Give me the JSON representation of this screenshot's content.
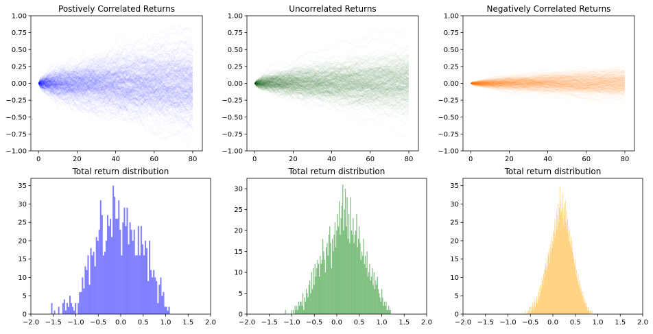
{
  "chart_data": [
    {
      "type": "line",
      "title": "Postively Correlated Returns",
      "description": "Fan of simulated cumulative return paths",
      "color": "#0000ff",
      "xlim": [
        -4,
        85
      ],
      "ylim": [
        -1.0,
        1.0
      ],
      "x_ticks": [
        0,
        20,
        40,
        60,
        80
      ],
      "y_ticks": [
        -1.0,
        -0.75,
        -0.5,
        -0.25,
        0.0,
        0.25,
        0.5,
        0.75,
        1.0
      ],
      "y_tick_labels": [
        "−1.00",
        "−0.75",
        "−0.50",
        "−0.25",
        "0.00",
        "0.25",
        "0.50",
        "0.75",
        "1.00"
      ],
      "steps": 81,
      "final_spread_sigma": 0.3,
      "final_envelope": [
        -0.55,
        0.6
      ]
    },
    {
      "type": "line",
      "title": "Uncorrelated Returns",
      "description": "Fan of simulated cumulative return paths",
      "color": "#006400",
      "xlim": [
        -4,
        85
      ],
      "ylim": [
        -1.0,
        1.0
      ],
      "x_ticks": [
        0,
        20,
        40,
        60,
        80
      ],
      "y_ticks": [
        -1.0,
        -0.75,
        -0.5,
        -0.25,
        0.0,
        0.25,
        0.5,
        0.75,
        1.0
      ],
      "y_tick_labels": [
        "−1.00",
        "−0.75",
        "−0.50",
        "−0.25",
        "0.00",
        "0.25",
        "0.50",
        "0.75",
        "1.00"
      ],
      "steps": 81,
      "final_spread_sigma": 0.22,
      "final_envelope": [
        -0.42,
        0.42
      ]
    },
    {
      "type": "line",
      "title": "Negatively Correlated Returns",
      "description": "Fan of simulated cumulative return paths",
      "color": "#ff8c00",
      "xlim": [
        -4,
        85
      ],
      "ylim": [
        -1.0,
        1.0
      ],
      "x_ticks": [
        0,
        20,
        40,
        60,
        80
      ],
      "y_ticks": [
        -1.0,
        -0.75,
        -0.5,
        -0.25,
        0.0,
        0.25,
        0.5,
        0.75,
        1.0
      ],
      "y_tick_labels": [
        "−1.00",
        "−0.75",
        "−0.50",
        "−0.25",
        "0.00",
        "0.25",
        "0.50",
        "0.75",
        "1.00"
      ],
      "steps": 81,
      "final_spread_sigma": 0.1,
      "final_envelope": [
        -0.15,
        0.27
      ]
    },
    {
      "type": "bar",
      "title": "Total return distribution",
      "color": "#0000ff",
      "opacity": 0.5,
      "xlim": [
        -2.0,
        2.0
      ],
      "ylim": [
        0,
        37
      ],
      "x_ticks": [
        -2.0,
        -1.5,
        -1.0,
        -0.5,
        0.0,
        0.5,
        1.0,
        1.5,
        2.0
      ],
      "x_tick_labels": [
        "−2.0",
        "−1.5",
        "−1.0",
        "−0.5",
        "0.0",
        "0.5",
        "1.0",
        "1.5",
        "2.0"
      ],
      "y_ticks": [
        0,
        5,
        10,
        15,
        20,
        25,
        30,
        35
      ],
      "bin_start": -1.55,
      "bin_width": 0.0311,
      "counts": [
        3,
        0,
        1,
        0,
        0,
        2,
        0,
        0,
        3,
        4,
        1,
        3,
        2,
        5,
        3,
        2,
        1,
        3,
        0,
        3,
        6,
        6,
        10,
        7,
        13,
        12,
        16,
        8,
        18,
        16,
        17,
        13,
        21,
        20,
        23,
        31,
        27,
        16,
        17,
        20,
        27,
        24,
        26,
        21,
        35,
        32,
        26,
        26,
        31,
        23,
        16,
        25,
        29,
        24,
        29,
        19,
        25,
        23,
        20,
        23,
        16,
        16,
        24,
        16,
        24,
        19,
        16,
        20,
        18,
        9,
        20,
        12,
        10,
        12,
        10,
        9,
        3,
        8,
        10,
        5,
        6,
        2,
        2,
        1,
        2
      ]
    },
    {
      "type": "bar",
      "title": "Total return distribution",
      "color": "#008000",
      "opacity": 0.5,
      "xlim": [
        -2.0,
        2.0
      ],
      "ylim": [
        0,
        32.5
      ],
      "x_ticks": [
        -2.0,
        -1.5,
        -1.0,
        -0.5,
        0.0,
        0.5,
        1.0,
        1.5,
        2.0
      ],
      "x_tick_labels": [
        "−2.0",
        "−1.5",
        "−1.0",
        "−0.5",
        "0.0",
        "0.5",
        "1.0",
        "1.5",
        "2.0"
      ],
      "y_ticks": [
        0,
        5,
        10,
        15,
        20,
        25,
        30
      ],
      "bin_start": -1.15,
      "bin_width": 0.0193,
      "counts": [
        1,
        0,
        0,
        0,
        0,
        0,
        0,
        1,
        0,
        1,
        0,
        2,
        1,
        2,
        1,
        3,
        2,
        3,
        3,
        2,
        5,
        1,
        4,
        3,
        6,
        5,
        4,
        7,
        8,
        5,
        10,
        6,
        11,
        7,
        12,
        9,
        11,
        13,
        12,
        9,
        14,
        12,
        13,
        18,
        15,
        13,
        10,
        16,
        17,
        14,
        19,
        21,
        17,
        11,
        18,
        15,
        19,
        22,
        16,
        20,
        24,
        21,
        27,
        19,
        23,
        26,
        31,
        20,
        25,
        30,
        21,
        28,
        18,
        24,
        17,
        28,
        20,
        19,
        23,
        17,
        19,
        20,
        24,
        16,
        18,
        21,
        17,
        13,
        15,
        14,
        18,
        12,
        14,
        11,
        15,
        9,
        10,
        12,
        8,
        9,
        11,
        7,
        10,
        6,
        8,
        7,
        9,
        6,
        5,
        4,
        3,
        6,
        4,
        2,
        3,
        2,
        3,
        1,
        1,
        2,
        1,
        1
      ]
    },
    {
      "type": "bar",
      "title": "Total return distribution",
      "color": "#ffa500",
      "opacity": 0.5,
      "xlim": [
        -2.0,
        2.0
      ],
      "ylim": [
        0,
        37
      ],
      "x_ticks": [
        -2.0,
        -1.5,
        -1.0,
        -0.5,
        0.0,
        0.5,
        1.0,
        1.5,
        2.0
      ],
      "x_tick_labels": [
        "−2.0",
        "−1.5",
        "−1.0",
        "−0.5",
        "0.0",
        "0.5",
        "1.0",
        "1.5",
        "2.0"
      ],
      "y_ticks": [
        0,
        5,
        10,
        15,
        20,
        25,
        30,
        35
      ],
      "bin_start": -0.62,
      "bin_width": 0.0124,
      "counts": [
        1,
        0,
        0,
        0,
        1,
        0,
        1,
        2,
        1,
        0,
        2,
        1,
        2,
        3,
        2,
        1,
        3,
        4,
        2,
        3,
        4,
        5,
        3,
        6,
        4,
        7,
        5,
        6,
        8,
        7,
        10,
        9,
        8,
        11,
        12,
        10,
        13,
        14,
        12,
        15,
        13,
        17,
        16,
        18,
        14,
        19,
        17,
        21,
        18,
        20,
        23,
        19,
        22,
        26,
        21,
        24,
        28,
        23,
        27,
        30,
        25,
        29,
        35,
        27,
        31,
        28,
        26,
        33,
        29,
        24,
        30,
        27,
        31,
        25,
        28,
        23,
        26,
        22,
        24,
        20,
        23,
        19,
        21,
        18,
        20,
        17,
        15,
        16,
        14,
        13,
        15,
        11,
        12,
        10,
        9,
        11,
        8,
        9,
        7,
        8,
        6,
        7,
        5,
        6,
        4,
        5,
        3,
        4,
        3,
        2,
        3,
        2,
        1,
        2,
        1,
        1,
        0,
        1,
        1,
        0,
        1
      ]
    }
  ]
}
